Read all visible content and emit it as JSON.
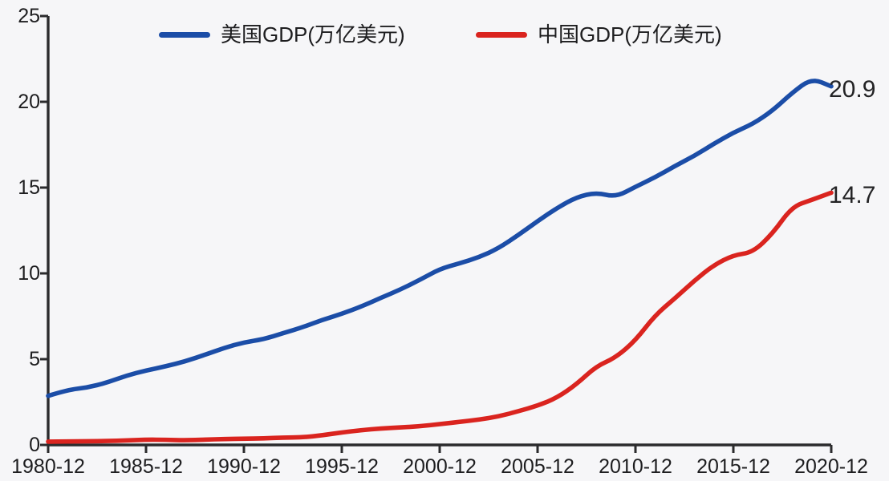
{
  "chart_data": {
    "type": "line",
    "title": "",
    "xlabel": "",
    "ylabel": "",
    "grid": false,
    "legend_position": "top",
    "background_color": "#f6f6f8",
    "axis_color": "#2b2b2d",
    "text_color": "#1d1d1f",
    "ylim": [
      0,
      25
    ],
    "xlim": [
      1980,
      2020
    ],
    "y_ticks": [
      0,
      5,
      10,
      15,
      20,
      25
    ],
    "x_tick_labels": [
      "1980-12",
      "1985-12",
      "1990-12",
      "1995-12",
      "2000-12",
      "2005-12",
      "2010-12",
      "2015-12",
      "2020-12"
    ],
    "x": [
      1980,
      1981,
      1982,
      1983,
      1984,
      1985,
      1986,
      1987,
      1988,
      1989,
      1990,
      1991,
      1992,
      1993,
      1994,
      1995,
      1996,
      1997,
      1998,
      1999,
      2000,
      2001,
      2002,
      2003,
      2004,
      2005,
      2006,
      2007,
      2008,
      2009,
      2010,
      2011,
      2012,
      2013,
      2014,
      2015,
      2016,
      2017,
      2018,
      2019,
      2020
    ],
    "series": [
      {
        "name": "美国GDP(万亿美元)",
        "color": "#1b4da7",
        "end_label": "20.9",
        "values": [
          2.86,
          3.21,
          3.34,
          3.63,
          4.04,
          4.34,
          4.58,
          4.87,
          5.25,
          5.66,
          5.98,
          6.16,
          6.52,
          6.86,
          7.29,
          7.64,
          8.07,
          8.58,
          9.06,
          9.63,
          10.25,
          10.58,
          10.94,
          11.46,
          12.22,
          13.04,
          13.82,
          14.45,
          14.71,
          14.45,
          15.05,
          15.6,
          16.25,
          16.84,
          17.55,
          18.21,
          18.71,
          19.48,
          20.53,
          21.37,
          20.9
        ]
      },
      {
        "name": "中国GDP(万亿美元)",
        "color": "#da241f",
        "end_label": "14.7",
        "values": [
          0.19,
          0.2,
          0.21,
          0.23,
          0.26,
          0.31,
          0.3,
          0.27,
          0.31,
          0.35,
          0.36,
          0.38,
          0.43,
          0.44,
          0.56,
          0.73,
          0.86,
          0.96,
          1.03,
          1.09,
          1.21,
          1.34,
          1.47,
          1.66,
          1.96,
          2.29,
          2.75,
          3.55,
          4.59,
          5.1,
          6.09,
          7.55,
          8.53,
          9.57,
          10.48,
          11.06,
          11.23,
          12.31,
          13.89,
          14.28,
          14.7
        ]
      }
    ]
  }
}
